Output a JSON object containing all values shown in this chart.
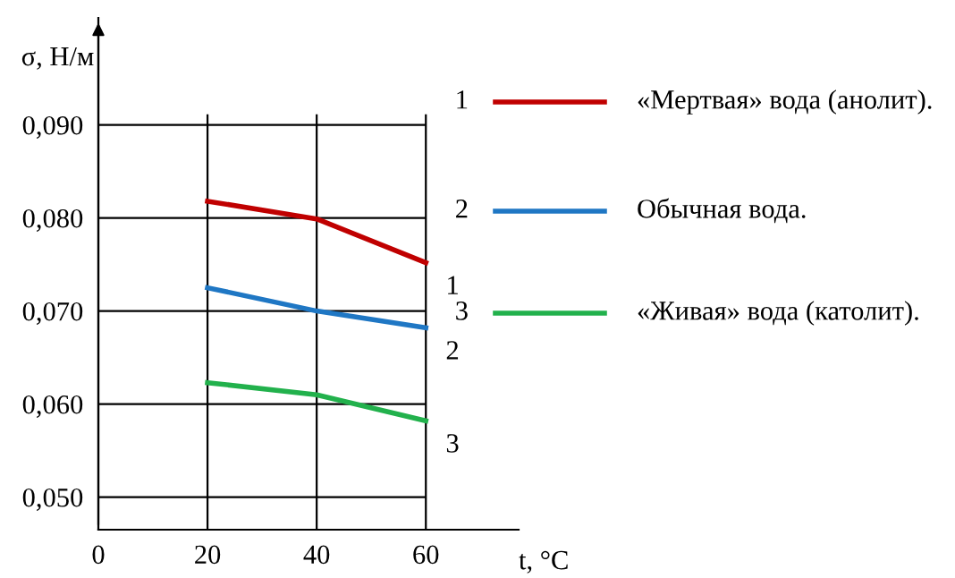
{
  "chart_data": {
    "type": "line",
    "xlabel": "t, °C",
    "ylabel": "σ, Н/м",
    "x": [
      20,
      40,
      60
    ],
    "series": [
      {
        "name": "«Мертвая» вода (анолит).",
        "color": "#c00000",
        "values": [
          0.0818,
          0.0799,
          0.0752
        ]
      },
      {
        "name": "Обычная вода.",
        "color": "#1f77c4",
        "values": [
          0.0725,
          0.07,
          0.0682
        ]
      },
      {
        "name": "«Живая» вода (католит).",
        "color": "#22b14c",
        "values": [
          0.0623,
          0.061,
          0.0582
        ]
      }
    ],
    "xlim": [
      0,
      77
    ],
    "xticks": [
      0,
      20,
      40,
      60
    ],
    "ylim": [
      0.0465,
      0.1015
    ],
    "yticks": [
      {
        "value": 0.05,
        "label": "0,050"
      },
      {
        "value": 0.06,
        "label": "0,060"
      },
      {
        "value": 0.07,
        "label": "0,070"
      },
      {
        "value": 0.08,
        "label": "0,080"
      },
      {
        "value": 0.09,
        "label": "0,090"
      }
    ],
    "grid": true,
    "legend": "right",
    "marker": "none",
    "line_style": "solid",
    "annotations": [
      "1",
      "2",
      "3",
      "1",
      "2",
      "3"
    ]
  }
}
